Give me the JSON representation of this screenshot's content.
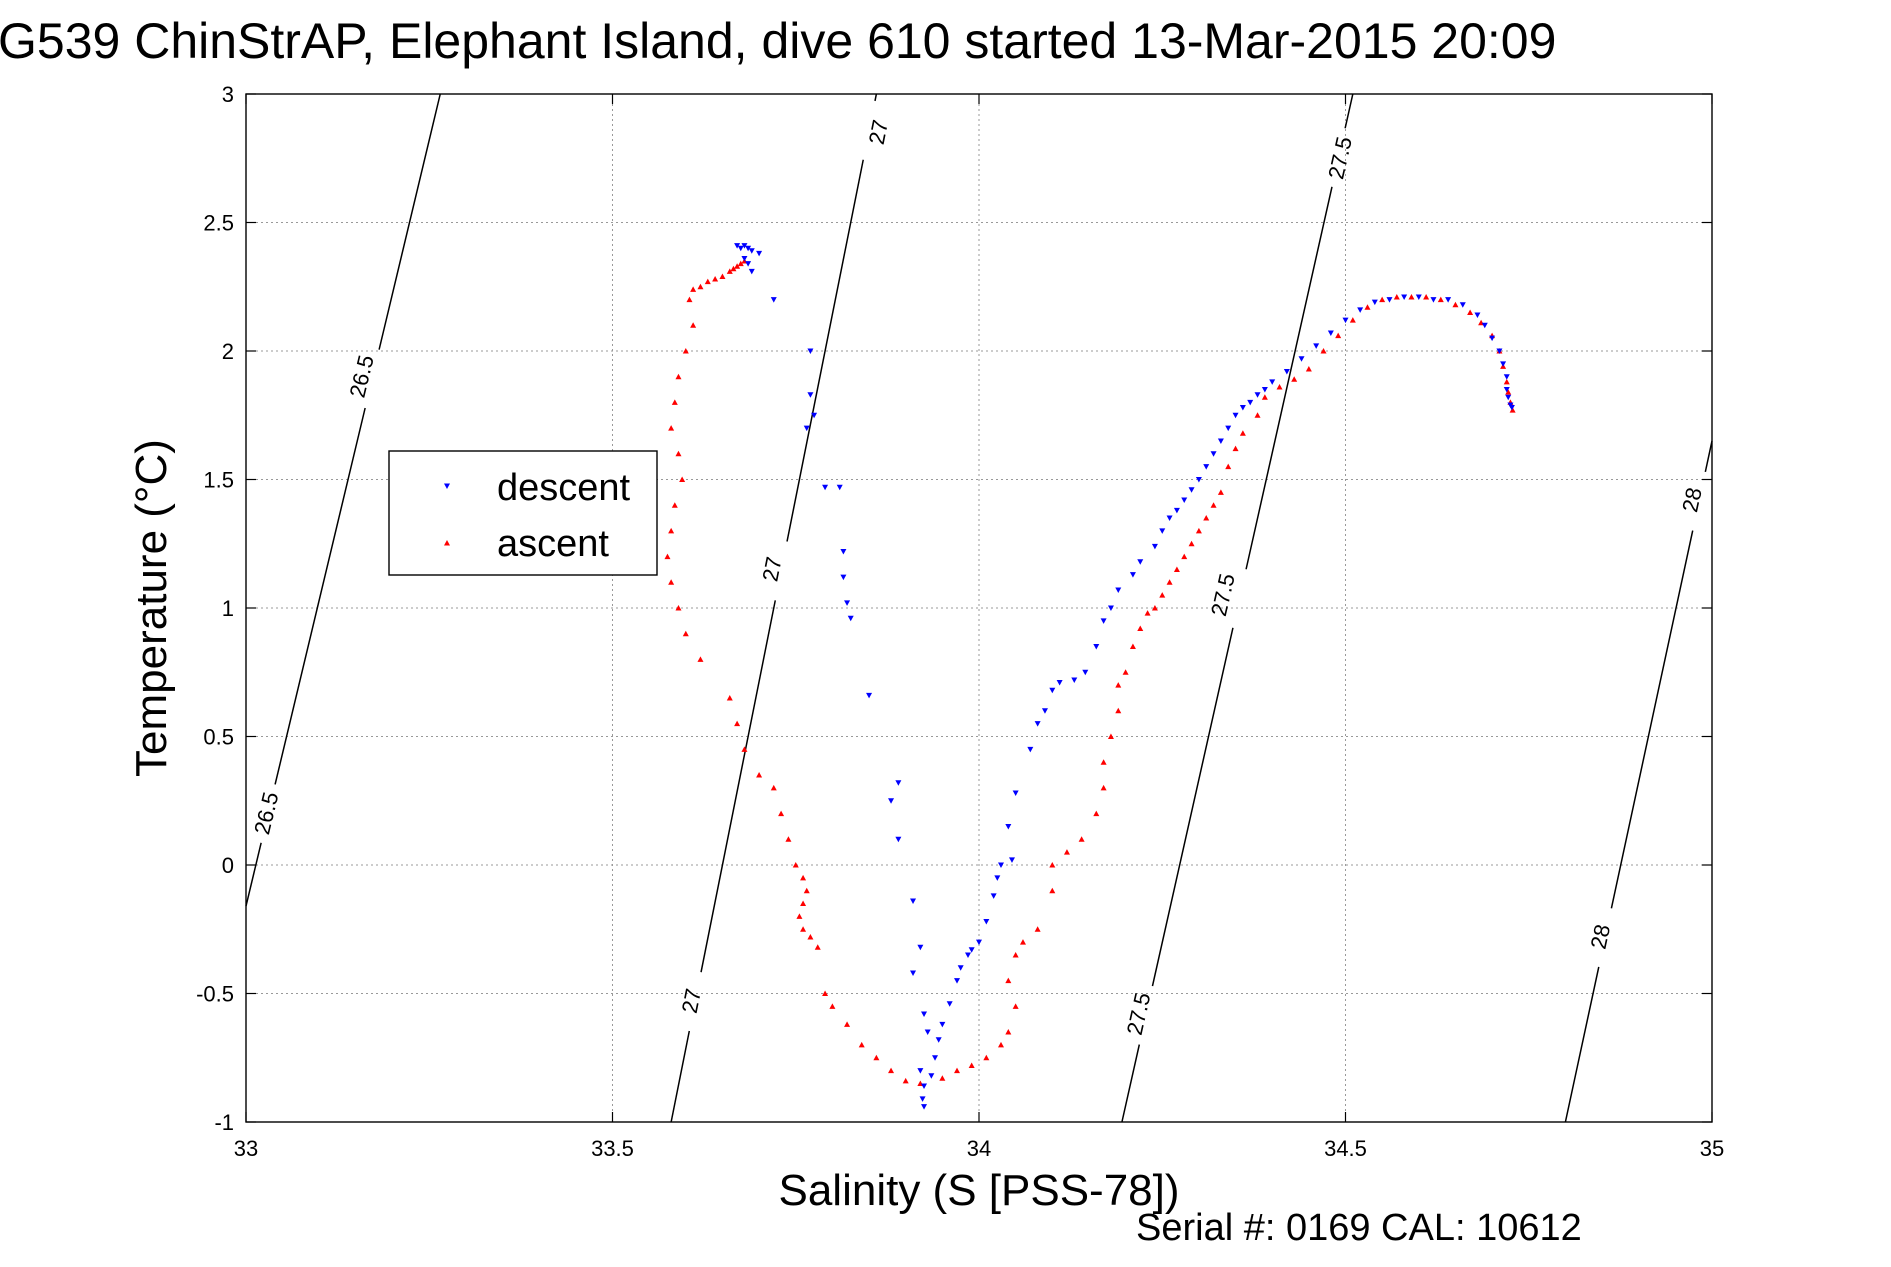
{
  "chart_data": {
    "type": "scatter",
    "title": "G539 ChinStrAP, Elephant Island, dive 610 started 13-Mar-2015 20:09",
    "xlabel": "Salinity (S [PSS-78])",
    "ylabel": "Temperature (°C)",
    "footer": "Serial #: 0169 CAL: 10612",
    "xlim": [
      33,
      35
    ],
    "ylim": [
      -1,
      3
    ],
    "x_ticks": [
      33,
      33.5,
      34,
      34.5,
      35
    ],
    "x_tick_labels": [
      "33",
      "33.5",
      "34",
      "34.5",
      "35"
    ],
    "y_ticks": [
      -1,
      -0.5,
      0,
      0.5,
      1,
      1.5,
      2,
      2.5,
      3
    ],
    "y_tick_labels": [
      "-1",
      "-0.5",
      "0",
      "0.5",
      "1",
      "1.5",
      "2",
      "2.5",
      "3"
    ],
    "grid": true,
    "legend_position": "left",
    "colors": {
      "descent": "#0000ff",
      "ascent": "#ff0000",
      "contour": "#000000"
    },
    "series": [
      {
        "name": "descent",
        "marker": "triangle-down",
        "points": [
          [
            33.67,
            2.41
          ],
          [
            33.675,
            2.4
          ],
          [
            33.68,
            2.41
          ],
          [
            33.685,
            2.4
          ],
          [
            33.69,
            2.39
          ],
          [
            33.68,
            2.36
          ],
          [
            33.685,
            2.34
          ],
          [
            33.69,
            2.31
          ],
          [
            33.7,
            2.38
          ],
          [
            33.72,
            2.2
          ],
          [
            33.77,
            2.0
          ],
          [
            33.77,
            1.83
          ],
          [
            33.775,
            1.75
          ],
          [
            33.765,
            1.7
          ],
          [
            33.79,
            1.47
          ],
          [
            33.81,
            1.47
          ],
          [
            33.815,
            1.22
          ],
          [
            33.815,
            1.12
          ],
          [
            33.82,
            1.02
          ],
          [
            33.825,
            0.96
          ],
          [
            33.85,
            0.66
          ],
          [
            33.89,
            0.32
          ],
          [
            33.88,
            0.25
          ],
          [
            33.89,
            0.1
          ],
          [
            33.91,
            -0.14
          ],
          [
            33.92,
            -0.32
          ],
          [
            33.91,
            -0.42
          ],
          [
            33.925,
            -0.58
          ],
          [
            33.93,
            -0.65
          ],
          [
            33.92,
            -0.8
          ],
          [
            33.925,
            -0.86
          ],
          [
            33.923,
            -0.91
          ],
          [
            33.925,
            -0.94
          ],
          [
            33.935,
            -0.82
          ],
          [
            33.94,
            -0.75
          ],
          [
            33.945,
            -0.68
          ],
          [
            33.95,
            -0.62
          ],
          [
            33.96,
            -0.54
          ],
          [
            33.97,
            -0.45
          ],
          [
            33.975,
            -0.4
          ],
          [
            33.985,
            -0.35
          ],
          [
            33.99,
            -0.33
          ],
          [
            34.0,
            -0.3
          ],
          [
            34.01,
            -0.22
          ],
          [
            34.02,
            -0.12
          ],
          [
            34.025,
            -0.05
          ],
          [
            34.03,
            0.0
          ],
          [
            34.045,
            0.02
          ],
          [
            34.04,
            0.15
          ],
          [
            34.05,
            0.28
          ],
          [
            34.07,
            0.45
          ],
          [
            34.08,
            0.55
          ],
          [
            34.09,
            0.6
          ],
          [
            34.1,
            0.68
          ],
          [
            34.11,
            0.71
          ],
          [
            34.13,
            0.72
          ],
          [
            34.145,
            0.75
          ],
          [
            34.16,
            0.85
          ],
          [
            34.17,
            0.95
          ],
          [
            34.18,
            1.0
          ],
          [
            34.19,
            1.07
          ],
          [
            34.21,
            1.13
          ],
          [
            34.22,
            1.18
          ],
          [
            34.24,
            1.24
          ],
          [
            34.25,
            1.3
          ],
          [
            34.26,
            1.35
          ],
          [
            34.27,
            1.38
          ],
          [
            34.28,
            1.42
          ],
          [
            34.29,
            1.46
          ],
          [
            34.3,
            1.5
          ],
          [
            34.31,
            1.55
          ],
          [
            34.32,
            1.6
          ],
          [
            34.33,
            1.65
          ],
          [
            34.34,
            1.7
          ],
          [
            34.35,
            1.75
          ],
          [
            34.36,
            1.78
          ],
          [
            34.37,
            1.8
          ],
          [
            34.38,
            1.83
          ],
          [
            34.39,
            1.85
          ],
          [
            34.4,
            1.88
          ],
          [
            34.42,
            1.92
          ],
          [
            34.44,
            1.97
          ],
          [
            34.46,
            2.02
          ],
          [
            34.48,
            2.07
          ],
          [
            34.5,
            2.12
          ],
          [
            34.52,
            2.16
          ],
          [
            34.54,
            2.19
          ],
          [
            34.56,
            2.2
          ],
          [
            34.58,
            2.21
          ],
          [
            34.6,
            2.21
          ],
          [
            34.62,
            2.2
          ],
          [
            34.64,
            2.2
          ],
          [
            34.66,
            2.18
          ],
          [
            34.68,
            2.14
          ],
          [
            34.69,
            2.1
          ],
          [
            34.7,
            2.05
          ],
          [
            34.71,
            2.0
          ],
          [
            34.715,
            1.95
          ],
          [
            34.72,
            1.9
          ],
          [
            34.72,
            1.85
          ],
          [
            34.722,
            1.82
          ],
          [
            34.725,
            1.79
          ],
          [
            34.727,
            1.78
          ]
        ]
      },
      {
        "name": "ascent",
        "marker": "triangle-up",
        "points": [
          [
            33.68,
            2.35
          ],
          [
            33.675,
            2.34
          ],
          [
            33.67,
            2.33
          ],
          [
            33.665,
            2.32
          ],
          [
            33.66,
            2.31
          ],
          [
            33.65,
            2.29
          ],
          [
            33.64,
            2.28
          ],
          [
            33.63,
            2.27
          ],
          [
            33.62,
            2.25
          ],
          [
            33.61,
            2.24
          ],
          [
            33.605,
            2.2
          ],
          [
            33.61,
            2.1
          ],
          [
            33.6,
            2.0
          ],
          [
            33.59,
            1.9
          ],
          [
            33.585,
            1.8
          ],
          [
            33.58,
            1.7
          ],
          [
            33.59,
            1.6
          ],
          [
            33.595,
            1.5
          ],
          [
            33.585,
            1.4
          ],
          [
            33.58,
            1.3
          ],
          [
            33.575,
            1.2
          ],
          [
            33.58,
            1.1
          ],
          [
            33.59,
            1.0
          ],
          [
            33.6,
            0.9
          ],
          [
            33.62,
            0.8
          ],
          [
            33.66,
            0.65
          ],
          [
            33.67,
            0.55
          ],
          [
            33.68,
            0.45
          ],
          [
            33.7,
            0.35
          ],
          [
            33.72,
            0.3
          ],
          [
            33.73,
            0.2
          ],
          [
            33.74,
            0.1
          ],
          [
            33.75,
            0.0
          ],
          [
            33.76,
            -0.05
          ],
          [
            33.765,
            -0.1
          ],
          [
            33.76,
            -0.15
          ],
          [
            33.755,
            -0.2
          ],
          [
            33.76,
            -0.25
          ],
          [
            33.77,
            -0.28
          ],
          [
            33.78,
            -0.32
          ],
          [
            33.79,
            -0.5
          ],
          [
            33.8,
            -0.55
          ],
          [
            33.82,
            -0.62
          ],
          [
            33.84,
            -0.7
          ],
          [
            33.86,
            -0.75
          ],
          [
            33.88,
            -0.8
          ],
          [
            33.9,
            -0.84
          ],
          [
            33.92,
            -0.85
          ],
          [
            33.95,
            -0.83
          ],
          [
            33.97,
            -0.8
          ],
          [
            33.99,
            -0.78
          ],
          [
            34.01,
            -0.75
          ],
          [
            34.03,
            -0.7
          ],
          [
            34.04,
            -0.65
          ],
          [
            34.05,
            -0.55
          ],
          [
            34.04,
            -0.45
          ],
          [
            34.05,
            -0.35
          ],
          [
            34.06,
            -0.3
          ],
          [
            34.08,
            -0.25
          ],
          [
            34.1,
            -0.1
          ],
          [
            34.1,
            0.0
          ],
          [
            34.12,
            0.05
          ],
          [
            34.14,
            0.1
          ],
          [
            34.16,
            0.2
          ],
          [
            34.17,
            0.3
          ],
          [
            34.17,
            0.4
          ],
          [
            34.18,
            0.5
          ],
          [
            34.19,
            0.6
          ],
          [
            34.19,
            0.7
          ],
          [
            34.2,
            0.75
          ],
          [
            34.21,
            0.85
          ],
          [
            34.22,
            0.92
          ],
          [
            34.23,
            0.98
          ],
          [
            34.24,
            1.0
          ],
          [
            34.25,
            1.05
          ],
          [
            34.26,
            1.1
          ],
          [
            34.27,
            1.15
          ],
          [
            34.28,
            1.2
          ],
          [
            34.29,
            1.25
          ],
          [
            34.3,
            1.3
          ],
          [
            34.31,
            1.35
          ],
          [
            34.32,
            1.4
          ],
          [
            34.33,
            1.45
          ],
          [
            34.34,
            1.55
          ],
          [
            34.35,
            1.62
          ],
          [
            34.36,
            1.68
          ],
          [
            34.38,
            1.75
          ],
          [
            34.39,
            1.82
          ],
          [
            34.41,
            1.86
          ],
          [
            34.43,
            1.89
          ],
          [
            34.45,
            1.93
          ],
          [
            34.47,
            2.0
          ],
          [
            34.49,
            2.06
          ],
          [
            34.51,
            2.12
          ],
          [
            34.53,
            2.17
          ],
          [
            34.55,
            2.2
          ],
          [
            34.57,
            2.21
          ],
          [
            34.59,
            2.21
          ],
          [
            34.61,
            2.21
          ],
          [
            34.63,
            2.2
          ],
          [
            34.65,
            2.18
          ],
          [
            34.67,
            2.15
          ],
          [
            34.685,
            2.11
          ],
          [
            34.7,
            2.06
          ],
          [
            34.71,
            2.0
          ],
          [
            34.715,
            1.94
          ],
          [
            34.72,
            1.88
          ],
          [
            34.722,
            1.84
          ],
          [
            34.725,
            1.8
          ],
          [
            34.728,
            1.77
          ]
        ]
      }
    ],
    "contours": [
      {
        "level": "26.5",
        "line": [
          [
            33.0,
            -0.16
          ],
          [
            33.265,
            3.0
          ]
        ],
        "labels": [
          [
            33.03,
            0.2
          ],
          [
            33.16,
            1.9
          ]
        ]
      },
      {
        "level": "27",
        "line": [
          [
            33.58,
            -1.0
          ],
          [
            33.86,
            3.0
          ]
        ],
        "labels": [
          [
            33.61,
            -0.53
          ],
          [
            33.72,
            1.15
          ],
          [
            33.865,
            2.85
          ]
        ]
      },
      {
        "level": "27.5",
        "line": [
          [
            34.195,
            -1.0
          ],
          [
            34.51,
            3.0
          ]
        ],
        "labels": [
          [
            34.22,
            -0.58
          ],
          [
            34.335,
            1.05
          ],
          [
            34.495,
            2.75
          ]
        ]
      },
      {
        "level": "28",
        "line": [
          [
            34.8,
            -1.0
          ],
          [
            35.0,
            1.65
          ]
        ],
        "labels": [
          [
            34.85,
            -0.28
          ],
          [
            34.975,
            1.42
          ]
        ]
      }
    ]
  }
}
